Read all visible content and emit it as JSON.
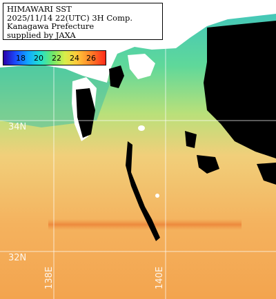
{
  "info": {
    "line1": "HIMAWARI SST",
    "line2": "2025/11/14 22(UTC) 3H Comp.",
    "line3": "Kanagawa Prefecture",
    "line4": "supplied by JAXA"
  },
  "colorbar": {
    "ticks": [
      "18",
      "20",
      "22",
      "24",
      "26"
    ]
  },
  "grid": {
    "lat_labels": [
      "34N",
      "32N"
    ],
    "lon_labels": [
      "138E",
      "140E"
    ]
  },
  "colors": {
    "land": "#ffffff",
    "cloud_mask": "#000000",
    "gridline": "#ffffff"
  }
}
